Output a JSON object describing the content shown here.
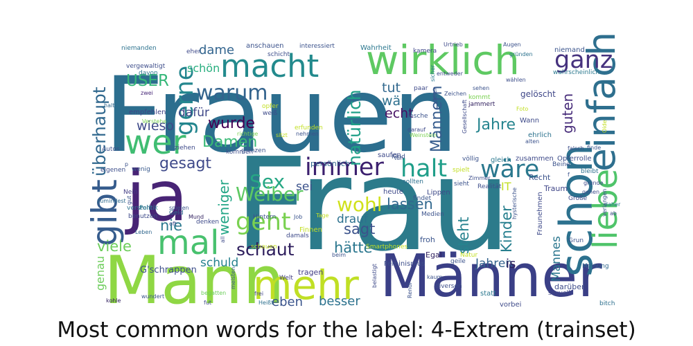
{
  "chart_data": {
    "type": "wordcloud",
    "title": "Most common words for the label: 4-Extrem (trainset)",
    "colormap": "viridis",
    "words": [
      {
        "text": "Frauen",
        "color": "#2c6e8e"
      },
      {
        "text": "Frau",
        "color": "#2c7b8b"
      },
      {
        "text": "Mann",
        "color": "#8fd744"
      },
      {
        "text": "Männer",
        "color": "#3a3f86"
      },
      {
        "text": "ja",
        "color": "#482475"
      },
      {
        "text": "mehr",
        "color": "#c0df25"
      },
      {
        "text": "wirklich",
        "color": "#5ec962"
      },
      {
        "text": "macht",
        "color": "#238a8d"
      },
      {
        "text": "schon",
        "color": "#2c718e"
      },
      {
        "text": "einfach",
        "color": "#2e6f8e"
      },
      {
        "text": "liebe",
        "color": "#4fc46a"
      },
      {
        "text": "gibt",
        "color": "#365c8d"
      },
      {
        "text": "wer",
        "color": "#40bd72"
      },
      {
        "text": "mal",
        "color": "#48c16e"
      },
      {
        "text": "immer",
        "color": "#3b1f6e"
      },
      {
        "text": "halt",
        "color": "#1f9e89"
      },
      {
        "text": "wäre",
        "color": "#2a788e"
      },
      {
        "text": "ganz",
        "color": "#46327e"
      },
      {
        "text": "warum",
        "color": "#33638d"
      },
      {
        "text": "geht",
        "color": "#7ad151"
      },
      {
        "text": "gerne",
        "color": "#24868e"
      },
      {
        "text": "überhaupt",
        "color": "#31688e"
      },
      {
        "text": "Sex",
        "color": "#26a784"
      },
      {
        "text": "Weiber",
        "color": "#5ec962"
      },
      {
        "text": "wohl",
        "color": "#d0e11c"
      },
      {
        "text": "schaut",
        "color": "#2d1d5c"
      },
      {
        "text": "natürlich",
        "color": "#1fa088"
      },
      {
        "text": "gesagt",
        "color": "#3f4a8a"
      },
      {
        "text": "Damen",
        "color": "#3aba76"
      },
      {
        "text": "wurde",
        "color": "#440154"
      },
      {
        "text": "dame",
        "color": "#32648e"
      },
      {
        "text": "USER",
        "color": "#35b779"
      },
      {
        "text": "Jahre",
        "color": "#25848e"
      },
      {
        "text": "Männern",
        "color": "#365c8d"
      },
      {
        "text": "weniger",
        "color": "#21a585"
      },
      {
        "text": "viele",
        "color": "#6ccd5a"
      },
      {
        "text": "nie",
        "color": "#2a788e"
      },
      {
        "text": "sagt",
        "color": "#3b528b"
      },
      {
        "text": "lassen",
        "color": "#31688e"
      },
      {
        "text": "hätte",
        "color": "#2a768e"
      },
      {
        "text": "steht",
        "color": "#26828e"
      },
      {
        "text": "Kinder",
        "color": "#277f8e"
      },
      {
        "text": "guten",
        "color": "#472c7a"
      },
      {
        "text": "echt",
        "color": "#471063"
      },
      {
        "text": "tut",
        "color": "#31688e"
      },
      {
        "text": "wär",
        "color": "#2d708e"
      },
      {
        "text": "sei",
        "color": "#3b528b"
      },
      {
        "text": "drauf",
        "color": "#2c718e"
      },
      {
        "text": "schön",
        "color": "#29af7f"
      },
      {
        "text": "wieso",
        "color": "#3e4a89"
      },
      {
        "text": "dafür",
        "color": "#3f4788"
      },
      {
        "text": "schuld",
        "color": "#26818e"
      },
      {
        "text": "Jahren",
        "color": "#33638d"
      },
      {
        "text": "Mannes",
        "color": "#2a768e"
      },
      {
        "text": "besser",
        "color": "#2c728e"
      },
      {
        "text": "eben",
        "color": "#3a548c"
      },
      {
        "text": "genau",
        "color": "#6ccd5a"
      },
      {
        "text": "is",
        "color": "#2d1d5c"
      },
      {
        "text": "IT",
        "color": "#c2df23"
      },
      {
        "text": "darüber",
        "color": "#3e4c8a"
      },
      {
        "text": "G'schrappen",
        "color": "#3d4e8a"
      },
      {
        "text": "Recht",
        "color": "#3b528b"
      },
      {
        "text": "Traum",
        "color": "#404688"
      },
      {
        "text": "Egal",
        "color": "#2d1d5c"
      },
      {
        "text": "froh",
        "color": "#3a548c"
      },
      {
        "text": "persönlich",
        "color": "#30678d"
      },
      {
        "text": "tragen",
        "color": "#433e85"
      },
      {
        "text": "Wahrheit",
        "color": "#2a778e"
      },
      {
        "text": "anschauen",
        "color": "#3b528b"
      },
      {
        "text": "niemanden",
        "color": "#2c728e"
      },
      {
        "text": "vergewaltigt",
        "color": "#3d4d8a"
      },
      {
        "text": "davon",
        "color": "#2a768e"
      },
      {
        "text": "empfehlen",
        "color": "#404387"
      },
      {
        "text": "Verstehe",
        "color": "#7ad151"
      },
      {
        "text": "zwei",
        "color": "#482878"
      },
      {
        "text": "halt",
        "color": "#31678e"
      },
      {
        "text": "Autos",
        "color": "#3c508b"
      },
      {
        "text": "eigenen",
        "color": "#3d4e8a"
      },
      {
        "text": "wenig",
        "color": "#38598c"
      },
      {
        "text": "zumindest",
        "color": "#2f6b8e"
      },
      {
        "text": "Nein",
        "color": "#433e85"
      },
      {
        "text": "versteht",
        "color": "#2c728e"
      },
      {
        "text": "benutzen",
        "color": "#3e4a89"
      },
      {
        "text": "Politik",
        "color": "#2a778e"
      },
      {
        "text": "spielen",
        "color": "#3b528b"
      },
      {
        "text": "Geld",
        "color": "#306a8e"
      },
      {
        "text": "oft",
        "color": "#3d4d8a"
      },
      {
        "text": "Leben",
        "color": "#31688e"
      },
      {
        "text": "denken",
        "color": "#3e4a89"
      },
      {
        "text": "Mund",
        "color": "#2d1d5c"
      },
      {
        "text": "wundert",
        "color": "#3a548c"
      },
      {
        "text": "begatten",
        "color": "#6ccd5a"
      },
      {
        "text": "kohle",
        "color": "#2d1d5c"
      },
      {
        "text": "fut",
        "color": "#3e4a89"
      },
      {
        "text": "frei",
        "color": "#404688"
      },
      {
        "text": "Heißt",
        "color": "#2d708e"
      },
      {
        "text": "Welt",
        "color": "#433e85"
      },
      {
        "text": "interessiert",
        "color": "#3b528b"
      },
      {
        "text": "kamera",
        "color": "#3f4788"
      },
      {
        "text": "Urtrieb",
        "color": "#3e4a89"
      },
      {
        "text": "Augen",
        "color": "#3b528b"
      },
      {
        "text": "gründen",
        "color": "#2c728e"
      },
      {
        "text": "wählen",
        "color": "#3d4e8a"
      },
      {
        "text": "niemand",
        "color": "#3a548c"
      },
      {
        "text": "wahrscheinlich",
        "color": "#2a788e"
      },
      {
        "text": "entweder",
        "color": "#3e4a89"
      },
      {
        "text": "sehen",
        "color": "#3b528b"
      },
      {
        "text": "kommt",
        "color": "#7ad151"
      },
      {
        "text": "jammert",
        "color": "#2d1d5c"
      },
      {
        "text": "gelöscht",
        "color": "#3f4788"
      },
      {
        "text": "Foto",
        "color": "#c2df23"
      },
      {
        "text": "Wann",
        "color": "#3e4a89"
      },
      {
        "text": "ehrlich",
        "color": "#2c728e"
      },
      {
        "text": "alten",
        "color": "#3b528b"
      },
      {
        "text": "falsch",
        "color": "#3d4e8a"
      },
      {
        "text": "finde",
        "color": "#3a548c"
      },
      {
        "text": "bleibt",
        "color": "#2d708e"
      },
      {
        "text": "gründe",
        "color": "#3e4a89"
      },
      {
        "text": "gehen",
        "color": "#3d4d8a"
      },
      {
        "text": "daher",
        "color": "#2a788e"
      },
      {
        "text": "Große",
        "color": "#3e4a89"
      },
      {
        "text": "Grun",
        "color": "#3b528b"
      },
      {
        "text": "Meinung",
        "color": "#31688e"
      },
      {
        "text": "bitch",
        "color": "#2d708e"
      },
      {
        "text": "sexuell",
        "color": "#404688"
      },
      {
        "text": "Beine",
        "color": "#3b528b"
      },
      {
        "text": "Opferrolle",
        "color": "#3d4e8a"
      },
      {
        "text": "zusammen",
        "color": "#3e4a89"
      },
      {
        "text": "gleich",
        "color": "#2a778e"
      },
      {
        "text": "völlig",
        "color": "#3b528b"
      },
      {
        "text": "Zimmer",
        "color": "#3d4d8a"
      },
      {
        "text": "spielt",
        "color": "#c2df23"
      },
      {
        "text": "sieht",
        "color": "#3b528b"
      },
      {
        "text": "Lippen",
        "color": "#3e4a89"
      },
      {
        "text": "Medien",
        "color": "#3b528b"
      },
      {
        "text": "sollten",
        "color": "#2d708e"
      },
      {
        "text": "heute",
        "color": "#3e4a89"
      },
      {
        "text": "findet",
        "color": "#3a548c"
      },
      {
        "text": "kaum",
        "color": "#3b528b"
      },
      {
        "text": "diversen",
        "color": "#3d4e8a"
      },
      {
        "text": "statt",
        "color": "#2a778e"
      },
      {
        "text": "vorbei",
        "color": "#3e4a89"
      },
      {
        "text": "Natur",
        "color": "#c2df23"
      },
      {
        "text": "geile",
        "color": "#3b528b"
      },
      {
        "text": "Feminismus",
        "color": "#3d4e8a"
      },
      {
        "text": "belastigt",
        "color": "#3e4a89"
      },
      {
        "text": "Rendi",
        "color": "#3b528b"
      },
      {
        "text": "Smartphones",
        "color": "#c2df23"
      },
      {
        "text": "Hintern",
        "color": "#3b528b"
      },
      {
        "text": "damals",
        "color": "#3e4a89"
      },
      {
        "text": "Job",
        "color": "#3a548c"
      },
      {
        "text": "Tage",
        "color": "#c2df23"
      },
      {
        "text": "Finnen",
        "color": "#c2df23"
      },
      {
        "text": "beim",
        "color": "#3b528b"
      },
      {
        "text": "schauen",
        "color": "#c2df23"
      },
      {
        "text": "Kind",
        "color": "#3b528b"
      },
      {
        "text": "saufen",
        "color": "#3e4a89"
      },
      {
        "text": "kommen",
        "color": "#3d4e8a"
      },
      {
        "text": "glänzen",
        "color": "#3b528b"
      },
      {
        "text": "ziehen",
        "color": "#3e4a89"
      },
      {
        "text": "erfunden",
        "color": "#c2df23"
      },
      {
        "text": "nehmen",
        "color": "#3b528b"
      },
      {
        "text": "darauf",
        "color": "#3e4a89"
      },
      {
        "text": "Weinstein",
        "color": "#7ad151"
      },
      {
        "text": "fesche",
        "color": "#3b528b"
      },
      {
        "text": "schicht",
        "color": "#3d4e8a"
      },
      {
        "text": "sicher",
        "color": "#2a778e"
      },
      {
        "text": "deren",
        "color": "#3b528b"
      },
      {
        "text": "opfer",
        "color": "#c2df23"
      },
      {
        "text": "weiß",
        "color": "#3e4a89"
      },
      {
        "text": "Zeichen",
        "color": "#3b528b"
      },
      {
        "text": "paar",
        "color": "#3e4a89"
      },
      {
        "text": "sitzt",
        "color": "#c2df23"
      },
      {
        "text": "richtige",
        "color": "#7ad151"
      },
      {
        "text": "tun",
        "color": "#3b528b"
      },
      {
        "text": "Gesellschaft",
        "color": "#3e4a89"
      },
      {
        "text": "Realität",
        "color": "#3d4e8a"
      },
      {
        "text": "hysterische",
        "color": "#3b528b"
      },
      {
        "text": "Fraunehmen",
        "color": "#3e4a89"
      },
      {
        "text": "Oide",
        "color": "#c2df23"
      },
      {
        "text": "verlangen",
        "color": "#3b528b"
      },
      {
        "text": "eher",
        "color": "#3e4a89"
      },
      {
        "text": "meisten",
        "color": "#3b528b"
      },
      {
        "text": "all",
        "color": "#3e4a89"
      },
      {
        "text": "gut",
        "color": "#3b528b"
      },
      {
        "text": "ab",
        "color": "#3e4a89"
      },
      {
        "text": "f",
        "color": "#3b528b"
      },
      {
        "text": "p",
        "color": "#3b528b"
      }
    ]
  }
}
